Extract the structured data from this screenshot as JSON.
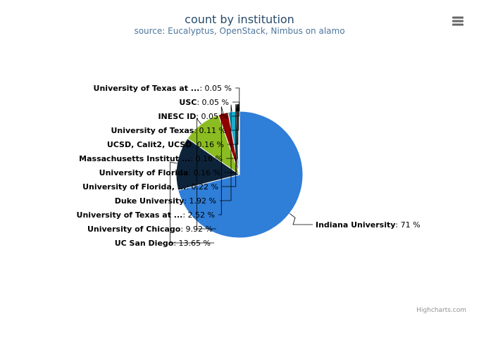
{
  "chart_data": {
    "type": "pie",
    "title": "count by institution",
    "subtitle": "source: Eucalyptus, OpenStack, Nimbus on alamo",
    "slices": [
      {
        "label": "Indiana University",
        "value": 71,
        "value_text": "71 %",
        "color": "#2f7ed8"
      },
      {
        "label": "UC San Diego",
        "value": 13.65,
        "value_text": "13.65 %",
        "color": "#0d233a"
      },
      {
        "label": "University of Chicago",
        "value": 9.92,
        "value_text": "9.92 %",
        "color": "#8bbc21"
      },
      {
        "label": "University of Texas at ...",
        "value": 2.52,
        "value_text": "2.52 %",
        "color": "#910000"
      },
      {
        "label": "Duke University",
        "value": 1.92,
        "value_text": "1.92 %",
        "color": "#1aadce"
      },
      {
        "label": "University of Florida, ...",
        "value": 0.22,
        "value_text": "0.22 %",
        "color": "#492970"
      },
      {
        "label": "University of Florida",
        "value": 0.16,
        "value_text": "0.16 %",
        "color": "#f28f43"
      },
      {
        "label": "Massachusetts Institut ...",
        "value": 0.16,
        "value_text": "0.16 %",
        "color": "#77a1e5"
      },
      {
        "label": "UCSD, Calit2, UCSD",
        "value": 0.16,
        "value_text": "0.16 %",
        "color": "#c42525"
      },
      {
        "label": "University of Texas",
        "value": 0.11,
        "value_text": "0.11 %",
        "color": "#a6c96a"
      },
      {
        "label": "INESC ID",
        "value": 0.05,
        "value_text": "0.05 %",
        "color": "#2f7ed8"
      },
      {
        "label": "USC",
        "value": 0.05,
        "value_text": "0.05 %",
        "color": "#0d233a"
      },
      {
        "label": "University of Texas at ...",
        "value": 0.05,
        "value_text": "0.05 %",
        "color": "#8bbc21"
      }
    ]
  },
  "credits": "Highcharts.com",
  "menu_icon": "hamburger-menu-icon"
}
